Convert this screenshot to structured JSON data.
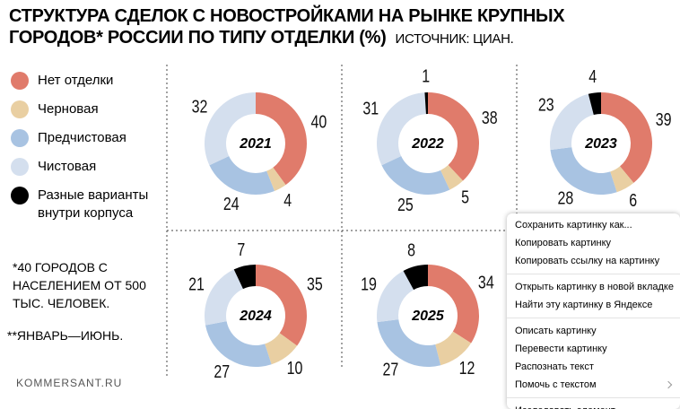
{
  "header": {
    "title": "СТРУКТУРА СДЕЛОК С НОВОСТРОЙКАМИ НА РЫНКЕ КРУПНЫХ ГОРОДОВ* РОССИИ ПО ТИПУ ОТДЕЛКИ (%)",
    "source": "ИСТОЧНИК: ЦИАН."
  },
  "legend": [
    {
      "label": "Нет отделки",
      "color": "#e07b6b"
    },
    {
      "label": "Черновая",
      "color": "#e9cfa2"
    },
    {
      "label": "Предчистовая",
      "color": "#a8c3e2"
    },
    {
      "label": "Чистовая",
      "color": "#d4dfee"
    },
    {
      "label": "Разные варианты внутри корпуса",
      "color": "#000000"
    }
  ],
  "notes": [
    "*40 ГОРОДОВ С НАСЕЛЕНИЕМ ОТ 500 ТЫС. ЧЕЛОВЕК.",
    "**ЯНВАРЬ—ИЮНЬ."
  ],
  "footer": "KOMMERSANT.RU",
  "chart_data": [
    {
      "type": "pie",
      "title": "2021",
      "values": [
        40,
        4,
        24,
        32
      ]
    },
    {
      "type": "pie",
      "title": "2022",
      "values": [
        38,
        5,
        25,
        31,
        1
      ]
    },
    {
      "type": "pie",
      "title": "2023",
      "values": [
        39,
        6,
        28,
        23,
        4
      ]
    },
    {
      "type": "pie",
      "title": "2024",
      "values": [
        35,
        10,
        27,
        21,
        7
      ]
    },
    {
      "type": "pie",
      "title": "2025",
      "values": [
        34,
        12,
        27,
        19,
        8
      ]
    }
  ],
  "context_menu": [
    [
      "Сохранить картинку как...",
      "Копировать картинку",
      "Копировать ссылку на картинку"
    ],
    [
      "Открыть картинку в новой вкладке",
      "Найти эту картинку в Яндексе"
    ],
    [
      "Описать картинку",
      "Перевести картинку",
      "Распознать текст",
      "Помочь с текстом"
    ],
    [
      "Исследовать элемент"
    ]
  ]
}
